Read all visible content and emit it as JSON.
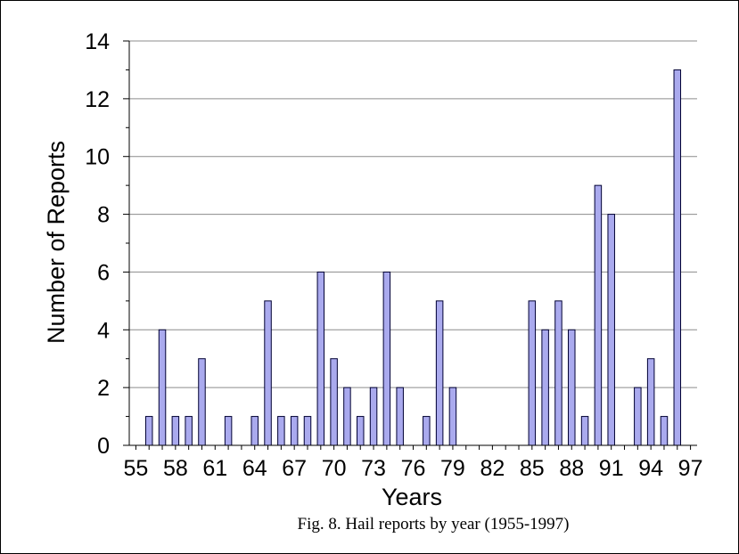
{
  "chart_data": {
    "type": "bar",
    "title": "",
    "xlabel": "Years",
    "ylabel": "Number of Reports",
    "caption": "Fig. 8. Hail reports by year (1955-1997)",
    "ylim": [
      0,
      14
    ],
    "y_ticks": [
      "0",
      "2",
      "4",
      "6",
      "8",
      "10",
      "12",
      "14"
    ],
    "x_tick_labels": [
      "55",
      "58",
      "61",
      "64",
      "67",
      "70",
      "73",
      "76",
      "79",
      "82",
      "85",
      "88",
      "91",
      "94",
      "97"
    ],
    "categories": [
      "55",
      "56",
      "57",
      "58",
      "59",
      "60",
      "61",
      "62",
      "63",
      "64",
      "65",
      "66",
      "67",
      "68",
      "69",
      "70",
      "71",
      "72",
      "73",
      "74",
      "75",
      "76",
      "77",
      "78",
      "79",
      "80",
      "81",
      "82",
      "83",
      "84",
      "85",
      "86",
      "87",
      "88",
      "89",
      "90",
      "91",
      "92",
      "93",
      "94",
      "95",
      "96",
      "97"
    ],
    "values": [
      0,
      1,
      4,
      1,
      1,
      3,
      0,
      1,
      0,
      1,
      5,
      1,
      1,
      1,
      6,
      3,
      2,
      1,
      2,
      6,
      2,
      0,
      1,
      5,
      2,
      0,
      0,
      0,
      0,
      0,
      5,
      4,
      5,
      4,
      1,
      9,
      8,
      0,
      2,
      3,
      1,
      13,
      0
    ],
    "grid": true,
    "bar_color": "#aaaaee",
    "legend": "none"
  }
}
